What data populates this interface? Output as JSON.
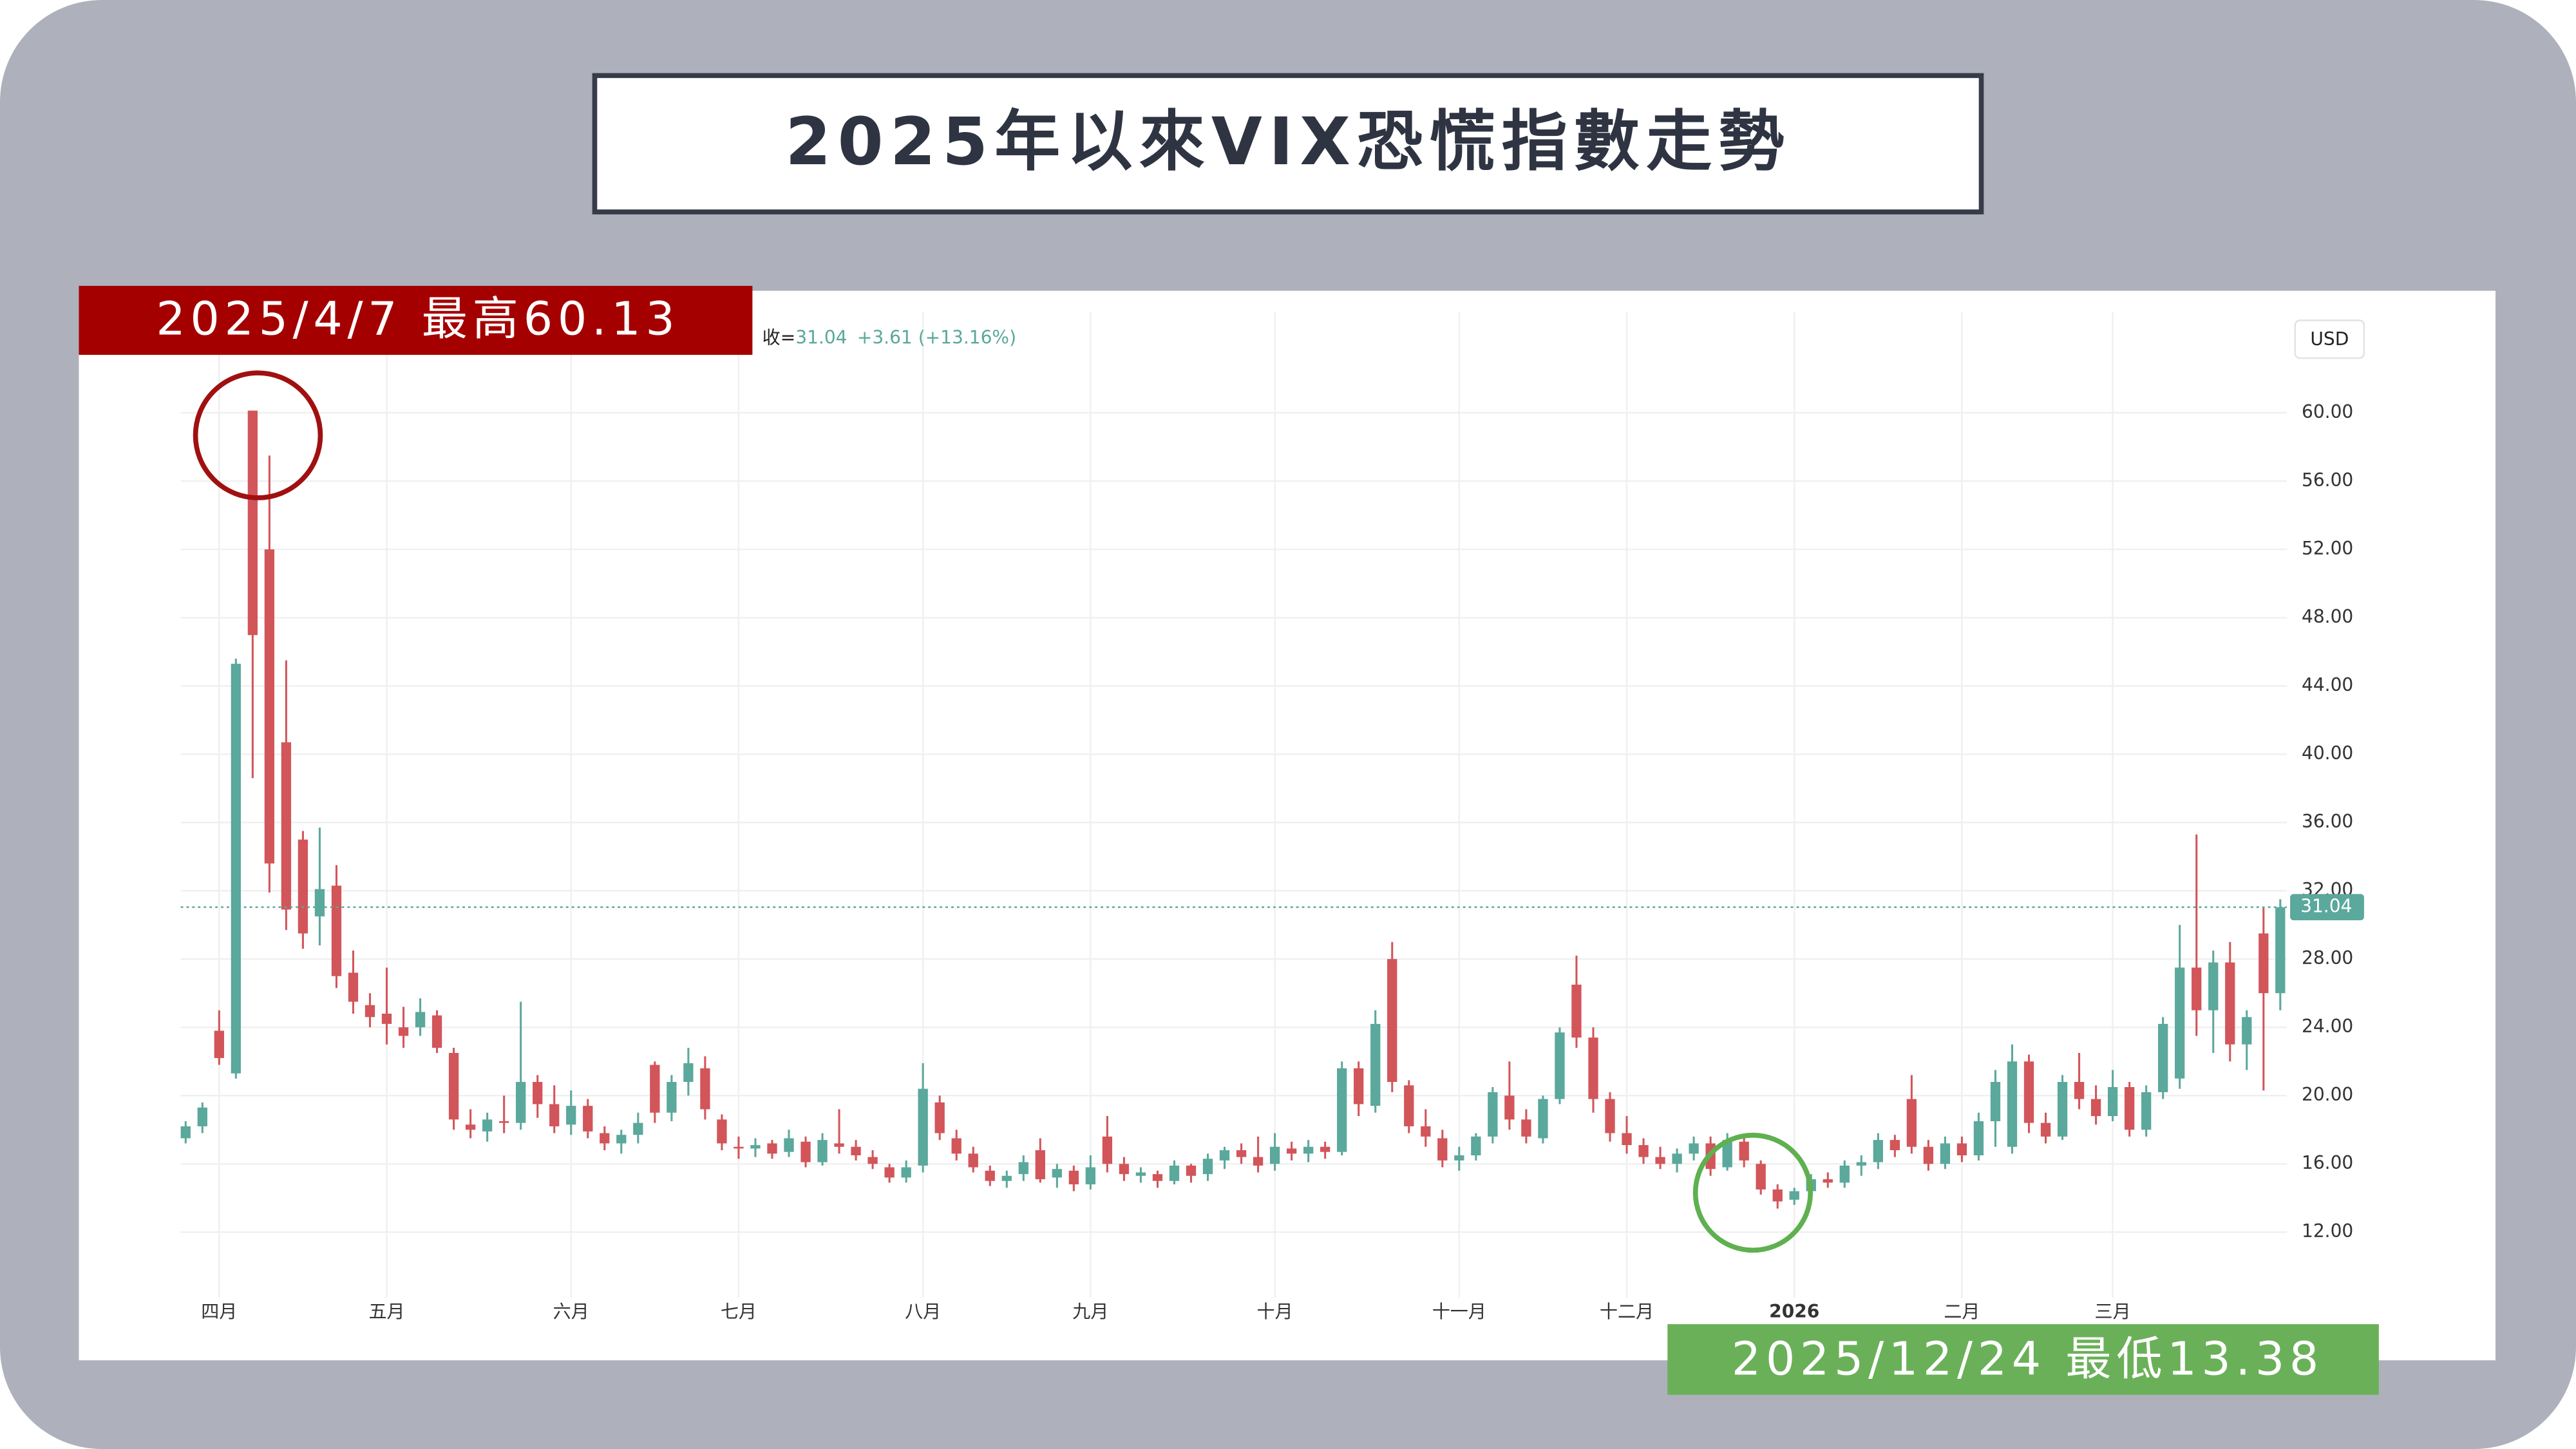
{
  "chart_data": {
    "type": "candlestick",
    "title": "2025年以來VIX恐慌指數走勢",
    "annotations": [
      "2025/4/7 最高60.13",
      "2025/12/24 最低13.38"
    ],
    "legend": {
      "prefix": "收=",
      "change": "+3.61 (+13.16%)"
    },
    "currency": "USD",
    "up_color": "#5ba89c",
    "down_color": "#d2555a",
    "ylim": [
      8.15,
      65.9
    ],
    "yticks": [
      {
        "value": 12,
        "label": "12.00"
      },
      {
        "value": 16,
        "label": "16.00"
      },
      {
        "value": 20,
        "label": "20.00"
      },
      {
        "value": 24,
        "label": "24.00"
      },
      {
        "value": 28,
        "label": "28.00"
      },
      {
        "value": 32,
        "label": "32.00"
      },
      {
        "value": 36,
        "label": "36.00"
      },
      {
        "value": 40,
        "label": "40.00"
      },
      {
        "value": 44,
        "label": "44.00"
      },
      {
        "value": 48,
        "label": "48.00"
      },
      {
        "value": 52,
        "label": "52.00"
      },
      {
        "value": 56,
        "label": "56.00"
      },
      {
        "value": 60,
        "label": "60.00"
      }
    ],
    "grid": true,
    "categories": [
      null,
      null,
      "四月",
      null,
      null,
      null,
      null,
      null,
      null,
      null,
      null,
      null,
      "五月",
      null,
      null,
      null,
      null,
      null,
      null,
      null,
      null,
      null,
      null,
      "六月",
      null,
      null,
      null,
      null,
      null,
      null,
      null,
      null,
      null,
      "七月",
      null,
      null,
      null,
      null,
      null,
      null,
      null,
      null,
      null,
      null,
      "八月",
      null,
      null,
      null,
      null,
      null,
      null,
      null,
      null,
      null,
      "九月",
      null,
      null,
      null,
      null,
      null,
      null,
      null,
      null,
      null,
      null,
      "十月",
      null,
      null,
      null,
      null,
      null,
      null,
      null,
      null,
      null,
      null,
      "十一月",
      null,
      null,
      null,
      null,
      null,
      null,
      null,
      null,
      null,
      "十二月",
      null,
      null,
      null,
      null,
      null,
      null,
      null,
      null,
      null,
      "2026",
      null,
      null,
      null,
      null,
      null,
      null,
      null,
      null,
      null,
      "二月",
      null,
      null,
      null,
      null,
      null,
      null,
      null,
      null,
      "三月",
      null,
      null,
      null,
      null,
      null,
      null,
      null,
      null,
      null,
      null
    ],
    "candles": [
      [
        17.5,
        18.5,
        17.2,
        18.2
      ],
      [
        18.2,
        19.6,
        17.8,
        19.3
      ],
      [
        23.8,
        25.0,
        21.8,
        22.2
      ],
      [
        21.3,
        45.6,
        21.0,
        45.3
      ],
      [
        60.13,
        60.13,
        38.6,
        46.98
      ],
      [
        52.0,
        57.5,
        31.9,
        33.6
      ],
      [
        40.7,
        45.5,
        29.7,
        30.9
      ],
      [
        35.0,
        35.5,
        28.6,
        29.5
      ],
      [
        30.5,
        35.7,
        28.8,
        32.1
      ],
      [
        32.3,
        33.5,
        26.3,
        27.0
      ],
      [
        27.2,
        28.5,
        24.8,
        25.5
      ],
      [
        25.3,
        26.0,
        24.0,
        24.6
      ],
      [
        24.8,
        27.5,
        23.0,
        24.2
      ],
      [
        24.0,
        25.2,
        22.8,
        23.5
      ],
      [
        24.0,
        25.7,
        23.5,
        24.9
      ],
      [
        24.7,
        25.0,
        22.5,
        22.8
      ],
      [
        22.5,
        22.8,
        18.0,
        18.6
      ],
      [
        18.3,
        19.2,
        17.5,
        18.0
      ],
      [
        17.9,
        19.0,
        17.3,
        18.6
      ],
      [
        18.5,
        20.0,
        17.8,
        18.4
      ],
      [
        18.4,
        25.5,
        18.0,
        20.8
      ],
      [
        20.8,
        21.2,
        18.7,
        19.5
      ],
      [
        19.5,
        20.6,
        17.8,
        18.2
      ],
      [
        18.3,
        20.3,
        17.7,
        19.4
      ],
      [
        19.4,
        19.8,
        17.5,
        17.9
      ],
      [
        17.8,
        18.2,
        16.8,
        17.2
      ],
      [
        17.2,
        18.0,
        16.6,
        17.7
      ],
      [
        17.7,
        19.0,
        17.2,
        18.4
      ],
      [
        21.8,
        22.0,
        18.4,
        19.0
      ],
      [
        19.0,
        21.2,
        18.5,
        20.8
      ],
      [
        20.8,
        22.8,
        20.0,
        21.9
      ],
      [
        21.6,
        22.3,
        18.6,
        19.2
      ],
      [
        18.6,
        18.9,
        16.8,
        17.2
      ],
      [
        17.0,
        17.6,
        16.3,
        16.9
      ],
      [
        16.9,
        17.5,
        16.4,
        17.1
      ],
      [
        17.2,
        17.4,
        16.3,
        16.6
      ],
      [
        16.7,
        18.0,
        16.4,
        17.5
      ],
      [
        17.3,
        17.6,
        15.8,
        16.1
      ],
      [
        16.1,
        17.8,
        15.9,
        17.4
      ],
      [
        17.2,
        19.2,
        16.6,
        17.0
      ],
      [
        17.0,
        17.4,
        16.2,
        16.5
      ],
      [
        16.4,
        16.8,
        15.7,
        16.0
      ],
      [
        15.8,
        16.0,
        14.9,
        15.2
      ],
      [
        15.2,
        16.2,
        14.9,
        15.8
      ],
      [
        15.9,
        21.9,
        15.5,
        20.4
      ],
      [
        19.6,
        20.0,
        17.4,
        17.8
      ],
      [
        17.5,
        18.0,
        16.2,
        16.6
      ],
      [
        16.6,
        17.0,
        15.5,
        15.8
      ],
      [
        15.6,
        15.9,
        14.7,
        15.0
      ],
      [
        15.0,
        15.6,
        14.6,
        15.3
      ],
      [
        15.4,
        16.5,
        15.0,
        16.1
      ],
      [
        16.8,
        17.5,
        14.9,
        15.1
      ],
      [
        15.2,
        16.0,
        14.6,
        15.7
      ],
      [
        15.6,
        15.9,
        14.4,
        14.8
      ],
      [
        14.8,
        16.5,
        14.5,
        15.8
      ],
      [
        17.6,
        18.8,
        15.5,
        16.0
      ],
      [
        16.0,
        16.4,
        15.0,
        15.4
      ],
      [
        15.3,
        15.8,
        14.9,
        15.5
      ],
      [
        15.4,
        15.6,
        14.6,
        15.0
      ],
      [
        15.0,
        16.2,
        14.8,
        15.9
      ],
      [
        15.9,
        16.0,
        14.9,
        15.3
      ],
      [
        15.4,
        16.6,
        15.0,
        16.3
      ],
      [
        16.2,
        17.0,
        15.7,
        16.8
      ],
      [
        16.8,
        17.2,
        16.0,
        16.4
      ],
      [
        16.4,
        17.6,
        15.5,
        15.9
      ],
      [
        16.0,
        17.8,
        15.6,
        17.0
      ],
      [
        16.9,
        17.3,
        16.2,
        16.6
      ],
      [
        16.6,
        17.4,
        16.1,
        17.0
      ],
      [
        17.0,
        17.3,
        16.3,
        16.7
      ],
      [
        16.7,
        22.0,
        16.5,
        21.6
      ],
      [
        21.6,
        22.0,
        18.8,
        19.5
      ],
      [
        19.4,
        25.0,
        19.0,
        24.2
      ],
      [
        28.0,
        29.0,
        20.2,
        20.8
      ],
      [
        20.6,
        20.9,
        17.8,
        18.2
      ],
      [
        18.2,
        19.2,
        17.0,
        17.6
      ],
      [
        17.5,
        18.0,
        15.8,
        16.2
      ],
      [
        16.2,
        17.0,
        15.6,
        16.5
      ],
      [
        16.5,
        17.8,
        16.2,
        17.6
      ],
      [
        17.6,
        20.5,
        17.2,
        20.2
      ],
      [
        20.0,
        22.0,
        18.0,
        18.6
      ],
      [
        18.6,
        19.2,
        17.2,
        17.6
      ],
      [
        17.5,
        20.0,
        17.2,
        19.8
      ],
      [
        19.8,
        24.0,
        19.5,
        23.7
      ],
      [
        26.5,
        28.2,
        22.8,
        23.4
      ],
      [
        23.4,
        24.0,
        19.0,
        19.8
      ],
      [
        19.8,
        20.2,
        17.3,
        17.8
      ],
      [
        17.8,
        18.8,
        16.6,
        17.1
      ],
      [
        17.1,
        17.5,
        16.0,
        16.4
      ],
      [
        16.4,
        17.0,
        15.7,
        16.0
      ],
      [
        16.0,
        16.9,
        15.5,
        16.6
      ],
      [
        16.6,
        17.6,
        16.2,
        17.2
      ],
      [
        17.2,
        17.6,
        15.3,
        15.7
      ],
      [
        15.8,
        17.8,
        15.6,
        17.4
      ],
      [
        17.3,
        17.6,
        15.8,
        16.2
      ],
      [
        16.0,
        16.2,
        14.2,
        14.5
      ],
      [
        14.5,
        14.8,
        13.38,
        13.8
      ],
      [
        13.9,
        14.6,
        13.6,
        14.4
      ],
      [
        14.4,
        15.4,
        14.1,
        15.1
      ],
      [
        15.1,
        15.5,
        14.6,
        14.9
      ],
      [
        14.9,
        16.2,
        14.6,
        15.9
      ],
      [
        15.9,
        16.5,
        15.3,
        16.1
      ],
      [
        16.1,
        17.8,
        15.7,
        17.4
      ],
      [
        17.4,
        17.7,
        16.4,
        16.8
      ],
      [
        19.8,
        21.2,
        16.6,
        17.0
      ],
      [
        17.0,
        17.4,
        15.6,
        16.0
      ],
      [
        16.0,
        17.6,
        15.7,
        17.2
      ],
      [
        17.2,
        17.6,
        16.1,
        16.5
      ],
      [
        16.5,
        19.0,
        16.2,
        18.5
      ],
      [
        18.5,
        21.5,
        17.0,
        20.8
      ],
      [
        17.0,
        23.0,
        16.6,
        22.0
      ],
      [
        22.0,
        22.4,
        17.8,
        18.4
      ],
      [
        18.4,
        19.0,
        17.2,
        17.6
      ],
      [
        17.6,
        21.2,
        17.4,
        20.8
      ],
      [
        20.8,
        22.5,
        19.2,
        19.8
      ],
      [
        19.8,
        20.6,
        18.3,
        18.8
      ],
      [
        18.8,
        21.5,
        18.5,
        20.5
      ],
      [
        20.5,
        20.8,
        17.6,
        18.0
      ],
      [
        18.0,
        20.6,
        17.6,
        20.2
      ],
      [
        20.2,
        24.6,
        19.8,
        24.2
      ],
      [
        21.0,
        30.0,
        20.4,
        27.5
      ],
      [
        27.5,
        35.3,
        23.5,
        25.0
      ],
      [
        25.0,
        28.5,
        22.5,
        27.8
      ],
      [
        27.8,
        29.0,
        22.0,
        23.0
      ],
      [
        23.0,
        25.0,
        21.5,
        24.6
      ],
      [
        29.5,
        31.0,
        20.3,
        26.0
      ],
      [
        26.0,
        31.5,
        25.0,
        31.04
      ]
    ]
  }
}
